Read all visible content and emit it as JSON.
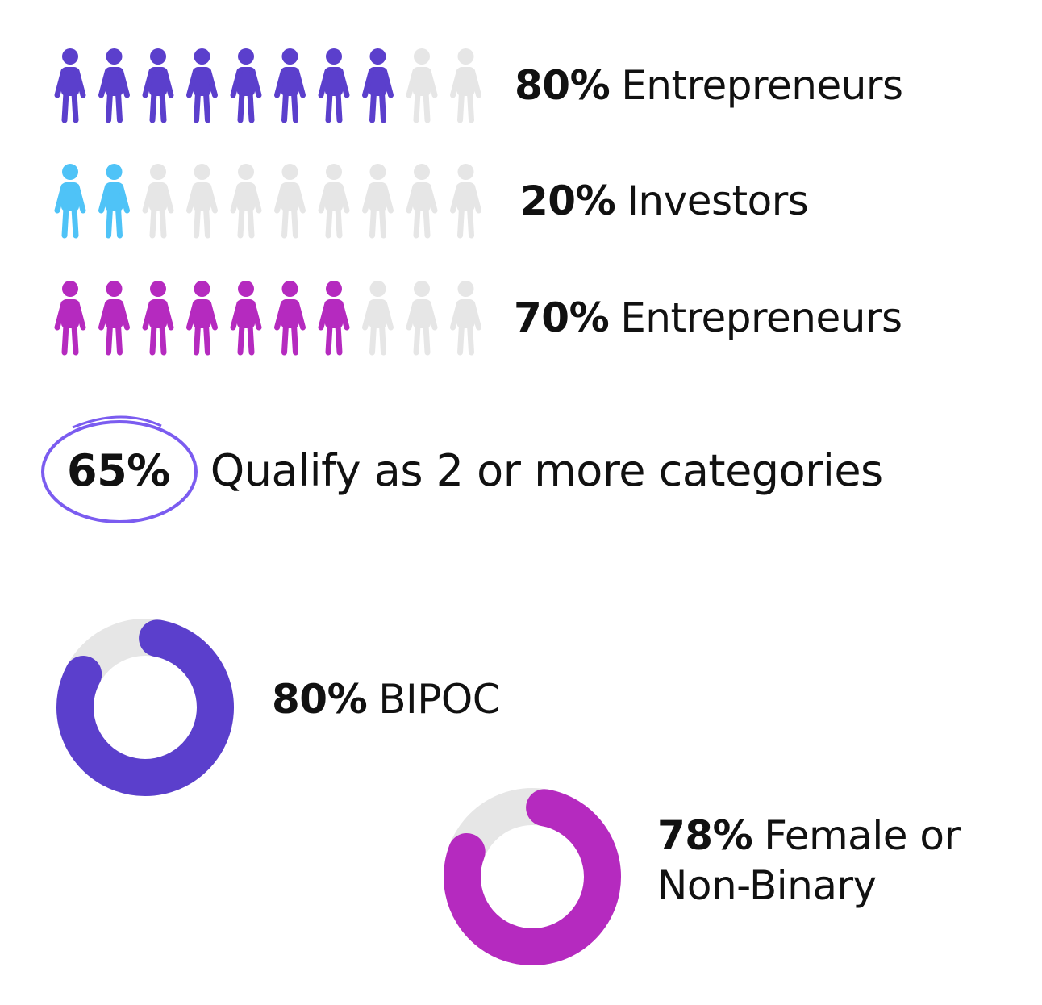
{
  "chart_data": [
    {
      "type": "pictogram",
      "categories": [
        "Entrepreneurs",
        "Investors",
        "Entrepreneurs"
      ],
      "values": [
        80,
        20,
        70
      ],
      "value_labels": [
        "80%",
        "20%",
        "70%"
      ],
      "colors": [
        "#5b3fcc",
        "#4fc3f7",
        "#b52abf"
      ],
      "empty_color": "#e6e6e6"
    },
    {
      "type": "donut",
      "categories": [
        "BIPOC",
        "Female or Non-Binary"
      ],
      "values": [
        80,
        78
      ],
      "value_labels": [
        "80%",
        "78%"
      ],
      "colors": [
        "#5b3fcc",
        "#b52abf"
      ],
      "track_color": "#e6e6e6"
    }
  ],
  "callout": {
    "label": "65%",
    "text": "Qualify as 2 or more categories",
    "ring_color": "#7b5cf0"
  }
}
